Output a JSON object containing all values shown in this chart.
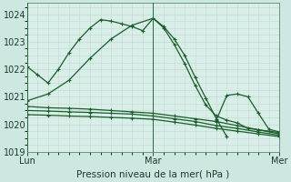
{
  "xlabel": "Pression niveau de la mer( hPa )",
  "bg_color": "#cce8e0",
  "plot_bg": "#d8eee8",
  "grid_color": "#c8d8d0",
  "line_color": "#1a5e2a",
  "ylim": [
    1019.0,
    1024.4
  ],
  "yticks": [
    1019,
    1020,
    1021,
    1022,
    1023,
    1024
  ],
  "xlim": [
    0,
    48
  ],
  "xtick_pos": [
    0,
    24,
    48
  ],
  "xtick_labels": [
    "Lun",
    "Mar",
    "Mer"
  ],
  "vlines": [
    0,
    24,
    48
  ],
  "lines": [
    {
      "x": [
        0,
        2,
        4,
        6,
        8,
        10,
        12,
        14,
        16,
        18,
        20,
        22,
        24,
        26,
        28,
        30,
        32,
        34,
        36,
        38
      ],
      "y": [
        1022.1,
        1021.8,
        1021.5,
        1022.0,
        1022.6,
        1023.1,
        1023.5,
        1023.8,
        1023.75,
        1023.65,
        1023.55,
        1023.4,
        1023.85,
        1023.55,
        1023.1,
        1022.5,
        1021.7,
        1020.95,
        1020.2,
        1019.55
      ]
    },
    {
      "x": [
        0,
        4,
        8,
        12,
        16,
        20,
        24,
        26,
        28,
        30,
        32,
        34,
        36,
        38,
        40,
        42,
        44,
        46,
        48
      ],
      "y": [
        1020.85,
        1021.1,
        1021.6,
        1022.4,
        1023.1,
        1023.6,
        1023.85,
        1023.5,
        1022.9,
        1022.2,
        1021.4,
        1020.7,
        1020.3,
        1020.15,
        1020.05,
        1019.85,
        1019.8,
        1019.75,
        1019.7
      ]
    },
    {
      "x": [
        0,
        4,
        8,
        12,
        16,
        20,
        24,
        28,
        32,
        36,
        40,
        44,
        48
      ],
      "y": [
        1020.65,
        1020.6,
        1020.58,
        1020.55,
        1020.5,
        1020.45,
        1020.4,
        1020.3,
        1020.2,
        1020.1,
        1019.95,
        1019.8,
        1019.65
      ]
    },
    {
      "x": [
        0,
        4,
        8,
        12,
        16,
        20,
        24,
        28,
        32,
        36,
        40,
        44,
        48
      ],
      "y": [
        1020.5,
        1020.48,
        1020.45,
        1020.43,
        1020.4,
        1020.37,
        1020.3,
        1020.2,
        1020.1,
        1019.95,
        1019.85,
        1019.72,
        1019.6
      ]
    },
    {
      "x": [
        0,
        4,
        8,
        12,
        16,
        20,
        24,
        28,
        32,
        36,
        40,
        44,
        48
      ],
      "y": [
        1020.35,
        1020.33,
        1020.3,
        1020.28,
        1020.25,
        1020.22,
        1020.18,
        1020.08,
        1019.97,
        1019.85,
        1019.75,
        1019.65,
        1019.55
      ]
    },
    {
      "x": [
        36,
        38,
        40,
        42,
        44,
        46,
        48
      ],
      "y": [
        1020.15,
        1021.05,
        1021.1,
        1021.0,
        1020.4,
        1019.82,
        1019.72
      ]
    }
  ]
}
